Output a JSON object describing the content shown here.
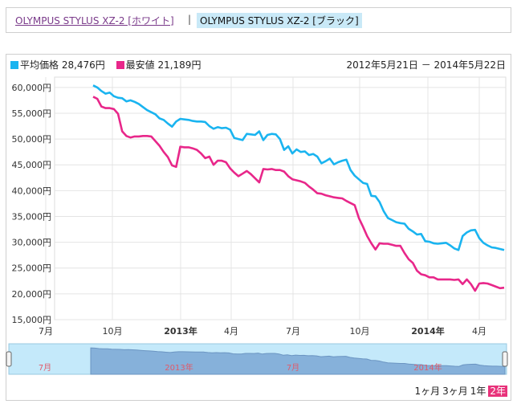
{
  "tabs": {
    "white_label": "OLYMPUS STYLUS XZ-2 [ホワイト]",
    "separator": "|",
    "black_label": "OLYMPUS STYLUS XZ-2 [ブラック]"
  },
  "legend": {
    "avg_label": "平均価格 28,476円",
    "min_label": "最安値 21,189円",
    "avg_color": "#1ab4f0",
    "min_color": "#e8278a"
  },
  "date_range": "2012年5月21日 － 2014年5月22日",
  "range_buttons": [
    {
      "label": "1ヶ月",
      "selected": false
    },
    {
      "label": "3ヶ月",
      "selected": false
    },
    {
      "label": "1年",
      "selected": false
    },
    {
      "label": "2年",
      "selected": true
    }
  ],
  "navigator_labels": [
    "7月",
    "2013年",
    "7月",
    "2014年"
  ],
  "chart_data": {
    "type": "line",
    "ylim": [
      15000,
      62000
    ],
    "y_ticks": [
      "15,000円",
      "20,000円",
      "25,000円",
      "30,000円",
      "35,000円",
      "40,000円",
      "45,000円",
      "50,000円",
      "55,000円",
      "60,000円"
    ],
    "x_ticks": [
      "7月",
      "10月",
      "2013年",
      "4月",
      "7月",
      "10月",
      "2014年",
      "4月"
    ],
    "grid": true,
    "series": [
      {
        "name": "平均価格",
        "color": "#1ab4f0",
        "values": [
          60400,
          60000,
          59300,
          58800,
          59000,
          58300,
          58000,
          57900,
          57300,
          57500,
          57200,
          56800,
          56200,
          55600,
          55200,
          54800,
          54000,
          53700,
          53000,
          52400,
          53400,
          53900,
          53800,
          53700,
          53500,
          53400,
          53400,
          53300,
          52500,
          52000,
          52300,
          52100,
          52200,
          51800,
          50200,
          50000,
          49800,
          51000,
          50900,
          50800,
          51500,
          49800,
          50800,
          51000,
          50900,
          50000,
          47900,
          48600,
          47200,
          48000,
          47500,
          47600,
          46900,
          47100,
          46600,
          45300,
          45700,
          46200,
          45100,
          45500,
          45800,
          46000,
          44000,
          42900,
          42200,
          41500,
          41300,
          39000,
          38900,
          37800,
          36000,
          34700,
          34300,
          33900,
          33700,
          33600,
          32600,
          32100,
          31500,
          31600,
          30200,
          30100,
          29800,
          29700,
          29800,
          29900,
          29400,
          28800,
          28500,
          31200,
          31900,
          32300,
          32400,
          30800,
          29900,
          29400,
          29000,
          28900,
          28700,
          28500
        ]
      },
      {
        "name": "最安値",
        "color": "#e8278a",
        "values": [
          58200,
          57800,
          56300,
          56000,
          56000,
          55800,
          54900,
          51500,
          50600,
          50300,
          50500,
          50500,
          50600,
          50600,
          50500,
          49600,
          48700,
          47500,
          46500,
          44900,
          44600,
          48500,
          48400,
          48400,
          48200,
          47900,
          47200,
          46300,
          46600,
          45000,
          45800,
          45800,
          45500,
          44300,
          43500,
          42800,
          43300,
          43800,
          43200,
          42400,
          41600,
          44200,
          44100,
          44200,
          44000,
          44000,
          43700,
          42800,
          42200,
          42000,
          41800,
          41500,
          40800,
          40200,
          39500,
          39400,
          39100,
          38900,
          38700,
          38600,
          38500,
          38000,
          37600,
          37200,
          34700,
          33000,
          31200,
          29800,
          28600,
          29800,
          29700,
          29700,
          29500,
          29300,
          29300,
          27900,
          26700,
          26000,
          24500,
          23800,
          23600,
          23200,
          23200,
          22800,
          22800,
          22800,
          22800,
          22700,
          22800,
          21900,
          22800,
          21900,
          20600,
          22000,
          22100,
          22000,
          21700,
          21400,
          21100,
          21200
        ]
      }
    ]
  }
}
